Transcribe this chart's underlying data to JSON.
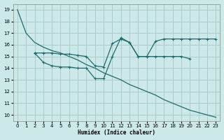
{
  "xlabel": "Humidex (Indice chaleur)",
  "bg_color": "#cce8e8",
  "grid_color": "#aacccc",
  "line_color": "#1e6b6b",
  "xlim": [
    -0.5,
    23.5
  ],
  "ylim": [
    9.5,
    19.5
  ],
  "xticks": [
    0,
    1,
    2,
    3,
    4,
    5,
    6,
    7,
    8,
    9,
    10,
    11,
    12,
    13,
    14,
    15,
    16,
    17,
    18,
    19,
    20,
    21,
    22,
    23
  ],
  "yticks": [
    10,
    11,
    12,
    13,
    14,
    15,
    16,
    17,
    18,
    19
  ],
  "line1_x": [
    0,
    1,
    2,
    3,
    4,
    5,
    6,
    7,
    8,
    9,
    10,
    11,
    12,
    13,
    14,
    15,
    16,
    17,
    18,
    19,
    20,
    21,
    22,
    23
  ],
  "line1_y": [
    19.0,
    17.0,
    16.2,
    15.8,
    15.5,
    15.3,
    15.0,
    14.7,
    14.3,
    14.0,
    13.6,
    13.3,
    13.0,
    12.6,
    12.3,
    12.0,
    11.7,
    11.3,
    11.0,
    10.7,
    10.4,
    10.2,
    10.0,
    9.8
  ],
  "line2_x": [
    2,
    3,
    4,
    5,
    6,
    7,
    8,
    9,
    10,
    11,
    12,
    13,
    14,
    15,
    16,
    17,
    18,
    19,
    20
  ],
  "line2_y": [
    15.3,
    15.3,
    15.3,
    15.2,
    15.2,
    15.1,
    15.0,
    14.2,
    14.1,
    16.1,
    16.5,
    16.2,
    15.0,
    15.0,
    15.0,
    15.0,
    15.0,
    15.0,
    14.8
  ],
  "line3_x": [
    2,
    3,
    4,
    5,
    6,
    7,
    8,
    9,
    10,
    11,
    12,
    13,
    14,
    15,
    16,
    17,
    18,
    19,
    20,
    21,
    22,
    23
  ],
  "line3_y": [
    15.3,
    14.5,
    14.2,
    14.1,
    14.1,
    14.0,
    14.0,
    13.1,
    13.1,
    15.0,
    16.6,
    16.2,
    15.0,
    15.0,
    16.3,
    16.5,
    16.5,
    16.5,
    16.5,
    16.5,
    16.5,
    16.5
  ]
}
